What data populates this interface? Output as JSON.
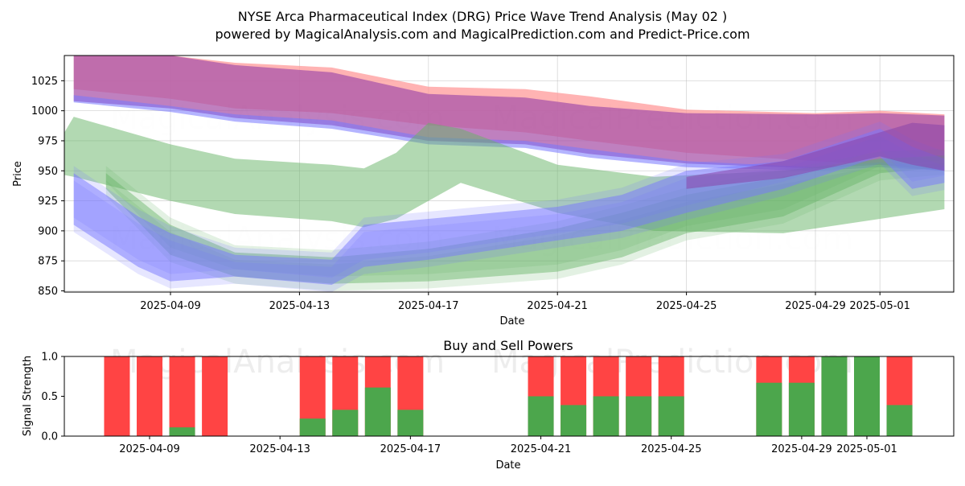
{
  "title_line1": "NYSE Arca Pharmaceutical Index (DRG) Price Wave Trend Analysis (May 02 )",
  "title_line2": "powered by MagicalAnalysis.com and MagicalPrediction.com and Predict-Price.com",
  "watermarks": [
    "MagicalAnalysis.com",
    "MagicalPrediction.com"
  ],
  "colors": {
    "red": "#ff4444",
    "green": "#4ca64c",
    "blue": "#6666ff",
    "band_red": "#ff9999",
    "band_green": "#88c888",
    "band_purple": "#aa55aa"
  },
  "chart_data": [
    {
      "type": "area",
      "title": "",
      "xlabel": "Date",
      "ylabel": "Price",
      "ylim": [
        849,
        1046
      ],
      "xticks": [
        "2025-04-09",
        "2025-04-13",
        "2025-04-17",
        "2025-04-21",
        "2025-04-25",
        "2025-04-29",
        "2025-05-01"
      ],
      "yticks": [
        850,
        875,
        900,
        925,
        950,
        975,
        1000,
        1025
      ],
      "grid": true,
      "series": [
        {
          "name": "red-band",
          "dates": [
            "2025-04-06",
            "2025-04-09",
            "2025-04-11",
            "2025-04-14",
            "2025-04-17",
            "2025-04-20",
            "2025-04-22",
            "2025-04-25",
            "2025-04-29",
            "2025-05-01",
            "2025-05-03"
          ],
          "upper": [
            1046,
            1046,
            1040,
            1036,
            1020,
            1018,
            1012,
            1001,
            998,
            1000,
            997
          ],
          "lower": [
            1018,
            1010,
            1002,
            998,
            988,
            982,
            975,
            965,
            958,
            955,
            950
          ]
        },
        {
          "name": "purple-band",
          "dates": [
            "2025-04-06",
            "2025-04-09",
            "2025-04-11",
            "2025-04-14",
            "2025-04-17",
            "2025-04-20",
            "2025-04-22",
            "2025-04-25",
            "2025-04-29",
            "2025-05-01",
            "2025-05-03"
          ],
          "upper": [
            1046,
            1046,
            1038,
            1032,
            1014,
            1011,
            1004,
            998,
            997,
            998,
            996
          ],
          "lower": [
            1008,
            1002,
            994,
            988,
            975,
            972,
            964,
            956,
            952,
            955,
            950
          ]
        },
        {
          "name": "blue-band",
          "dates": [
            "2025-04-06",
            "2025-04-09",
            "2025-04-11",
            "2025-04-14",
            "2025-04-17",
            "2025-04-20",
            "2025-04-22",
            "2025-04-25",
            "2025-04-29",
            "2025-05-01",
            "2025-05-03"
          ],
          "upper": [
            1013,
            1004,
            997,
            992,
            978,
            975,
            968,
            958,
            953,
            957,
            953
          ],
          "lower": [
            1007,
            999,
            991,
            985,
            972,
            969,
            961,
            953,
            950,
            953,
            950
          ]
        },
        {
          "name": "green-upper-wave",
          "dates": [
            "2025-04-05",
            "2025-04-06",
            "2025-04-09",
            "2025-04-11",
            "2025-04-14",
            "2025-04-15",
            "2025-04-16",
            "2025-04-17",
            "2025-04-18",
            "2025-04-21",
            "2025-04-24",
            "2025-04-28",
            "2025-05-01",
            "2025-05-03"
          ],
          "upper": [
            950,
            995,
            972,
            960,
            955,
            952,
            965,
            990,
            985,
            955,
            945,
            950,
            960,
            963
          ],
          "lower": [
            950,
            945,
            925,
            914,
            908,
            903,
            910,
            925,
            940,
            915,
            900,
            898,
            910,
            918
          ]
        },
        {
          "name": "green-lower-wave",
          "dates": [
            "2025-04-07",
            "2025-04-09",
            "2025-04-11",
            "2025-04-14",
            "2025-04-17",
            "2025-04-21",
            "2025-04-23",
            "2025-04-25",
            "2025-04-28",
            "2025-05-01",
            "2025-05-03"
          ],
          "upper": [
            948,
            905,
            882,
            878,
            885,
            902,
            915,
            930,
            945,
            960,
            962
          ],
          "lower": [
            935,
            880,
            862,
            856,
            858,
            866,
            878,
            898,
            912,
            948,
            953
          ]
        },
        {
          "name": "blue-lower-wave",
          "dates": [
            "2025-04-06",
            "2025-04-08",
            "2025-04-09",
            "2025-04-11",
            "2025-04-14",
            "2025-04-15",
            "2025-04-17",
            "2025-04-21",
            "2025-04-23",
            "2025-04-25",
            "2025-04-28",
            "2025-05-01",
            "2025-05-02",
            "2025-05-03"
          ],
          "upper": [
            948,
            912,
            898,
            880,
            876,
            905,
            910,
            920,
            930,
            950,
            958,
            985,
            970,
            960
          ],
          "lower": [
            905,
            870,
            858,
            862,
            855,
            870,
            876,
            892,
            900,
            915,
            935,
            962,
            935,
            940
          ]
        },
        {
          "name": "purple-tail-wave",
          "dates": [
            "2025-04-25",
            "2025-04-28",
            "2025-05-01",
            "2025-05-02",
            "2025-05-03"
          ],
          "upper": [
            945,
            958,
            982,
            990,
            988
          ],
          "lower": [
            935,
            944,
            962,
            955,
            950
          ]
        }
      ]
    },
    {
      "type": "bar",
      "title": "Buy and Sell Powers",
      "xlabel": "Date",
      "ylabel": "Signal Strength",
      "ylim": [
        0,
        1
      ],
      "yticks": [
        "0.0",
        "0.5",
        "1.0"
      ],
      "xticks": [
        "2025-04-09",
        "2025-04-13",
        "2025-04-17",
        "2025-04-21",
        "2025-04-25",
        "2025-04-29",
        "2025-05-01"
      ],
      "series": [
        {
          "name": "Buy",
          "color": "#4ca64c"
        },
        {
          "name": "Sell",
          "color": "#ff4444"
        }
      ],
      "bars": [
        {
          "date": "2025-04-08",
          "buy": 0.0
        },
        {
          "date": "2025-04-09",
          "buy": 0.0
        },
        {
          "date": "2025-04-10",
          "buy": 0.11
        },
        {
          "date": "2025-04-11",
          "buy": 0.0
        },
        {
          "date": "2025-04-14",
          "buy": 0.22
        },
        {
          "date": "2025-04-15",
          "buy": 0.33
        },
        {
          "date": "2025-04-16",
          "buy": 0.61
        },
        {
          "date": "2025-04-17",
          "buy": 0.33
        },
        {
          "date": "2025-04-21",
          "buy": 0.5
        },
        {
          "date": "2025-04-22",
          "buy": 0.39
        },
        {
          "date": "2025-04-23",
          "buy": 0.5
        },
        {
          "date": "2025-04-24",
          "buy": 0.5
        },
        {
          "date": "2025-04-25",
          "buy": 0.5
        },
        {
          "date": "2025-04-28",
          "buy": 0.67
        },
        {
          "date": "2025-04-29",
          "buy": 0.67
        },
        {
          "date": "2025-04-30",
          "buy": 1.0
        },
        {
          "date": "2025-05-01",
          "buy": 1.0
        },
        {
          "date": "2025-05-02",
          "buy": 0.39
        }
      ]
    }
  ]
}
